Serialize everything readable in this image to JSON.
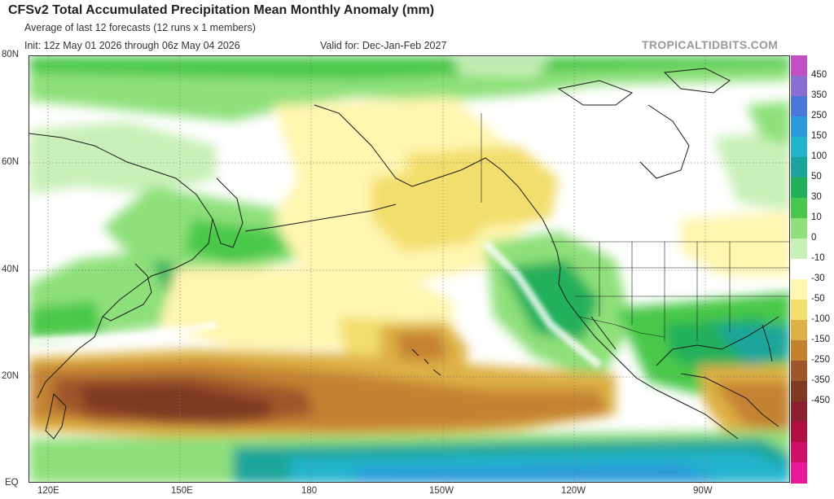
{
  "header": {
    "title": "CFSv2 Total Accumulated Precipitation Mean Monthly Anomaly (mm)",
    "subtitle": "Average of last 12 forecasts (12 runs x 1 members)",
    "init": "Init: 12z May 01 2026 through 06z May 04 2026",
    "valid": "Valid for: Dec-Jan-Feb 2027",
    "credit": "TROPICALTIDBITS.COM"
  },
  "axes": {
    "lat_labels": [
      "80N",
      "60N",
      "40N",
      "20N",
      "EQ"
    ],
    "lon_labels": [
      "120E",
      "150E",
      "180",
      "150W",
      "120W",
      "90W"
    ]
  },
  "colorbar": {
    "labels": [
      "450",
      "350",
      "250",
      "150",
      "100",
      "50",
      "30",
      "10",
      "0",
      "-10",
      "-30",
      "-50",
      "-100",
      "-150",
      "-250",
      "-350",
      "-450"
    ],
    "colors": [
      "#c44fc4",
      "#8a6fd0",
      "#4a78d8",
      "#2a9ad8",
      "#22b4cc",
      "#1ba59a",
      "#22b05a",
      "#48c84a",
      "#8ee07a",
      "#c9f0b8",
      "#ffffff",
      "#fff6b0",
      "#f2de6c",
      "#ddb044",
      "#c48230",
      "#a0562a",
      "#7e3a22",
      "#8a2030",
      "#b01040",
      "#d01068",
      "#e8189a"
    ]
  },
  "map_legend": {
    "features": [
      "coastlines",
      "country borders",
      "US state borders",
      "latitude/longitude grid"
    ]
  }
}
